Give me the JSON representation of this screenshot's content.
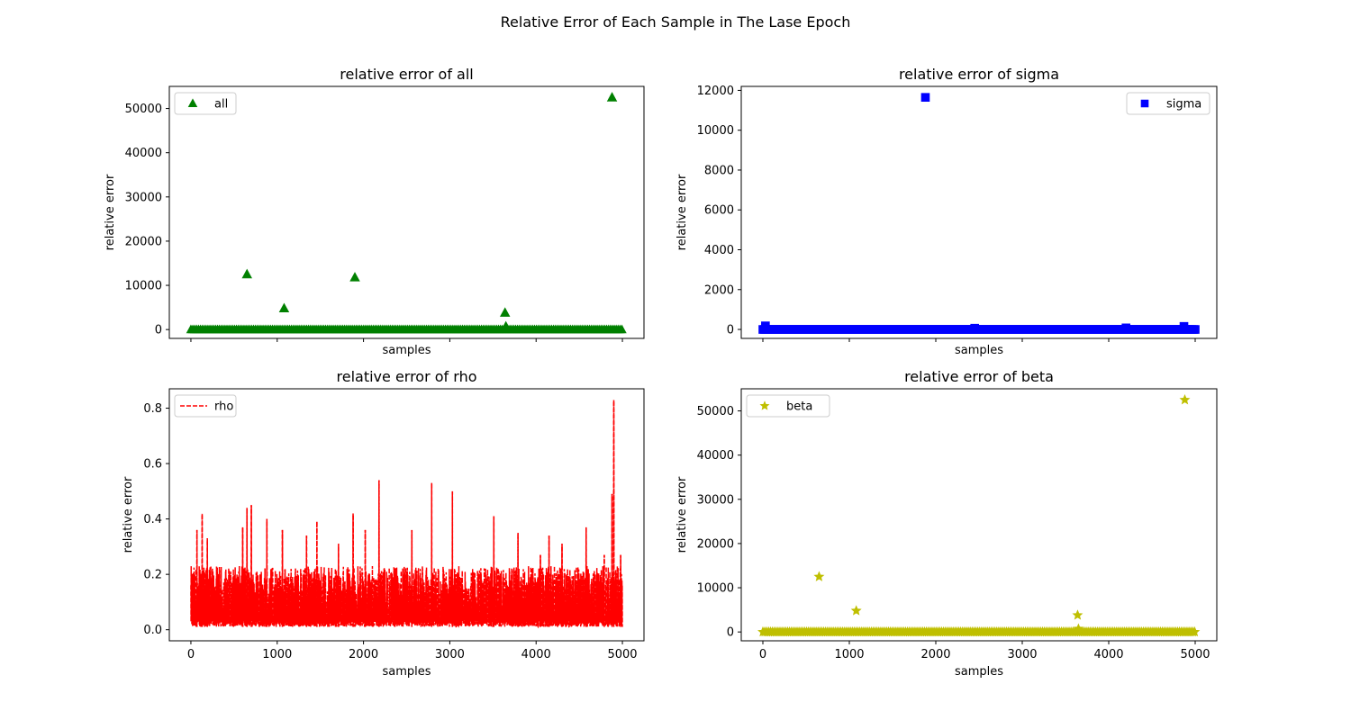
{
  "figure": {
    "suptitle": "Relative Error of Each Sample in The Lase Epoch"
  },
  "chart_data": [
    {
      "id": "all",
      "type": "scatter",
      "title": "relative error of all",
      "xlabel": "samples",
      "ylabel": "relative error",
      "xlim": [
        -250,
        5250
      ],
      "ylim": [
        -2000,
        55000
      ],
      "xticks": [
        0,
        1000,
        2000,
        3000,
        4000,
        5000
      ],
      "show_xticklabels": false,
      "yticks": [
        0,
        10000,
        20000,
        30000,
        40000,
        50000
      ],
      "yticklabels": [
        "0",
        "10000",
        "20000",
        "30000",
        "40000",
        "50000"
      ],
      "legend": {
        "label": "all",
        "position": "top-left"
      },
      "marker": "triangle",
      "color": "#008000",
      "baseline": {
        "x_start": 0,
        "x_end": 5000,
        "y": 0
      },
      "points": [
        {
          "x": 650,
          "y": 12500
        },
        {
          "x": 1080,
          "y": 4800
        },
        {
          "x": 1900,
          "y": 11800
        },
        {
          "x": 3640,
          "y": 3800
        },
        {
          "x": 3650,
          "y": 700
        },
        {
          "x": 4880,
          "y": 52500
        }
      ]
    },
    {
      "id": "sigma",
      "type": "scatter",
      "title": "relative error of sigma",
      "xlabel": "samples",
      "ylabel": "relative error",
      "xlim": [
        -250,
        5250
      ],
      "ylim": [
        -450,
        12200
      ],
      "xticks": [
        0,
        1000,
        2000,
        3000,
        4000,
        5000
      ],
      "show_xticklabels": false,
      "yticks": [
        0,
        2000,
        4000,
        6000,
        8000,
        10000,
        12000
      ],
      "yticklabels": [
        "0",
        "2000",
        "4000",
        "6000",
        "8000",
        "10000",
        "12000"
      ],
      "legend": {
        "label": "sigma",
        "position": "top-right"
      },
      "marker": "square",
      "color": "#0000ff",
      "baseline": {
        "x_start": 0,
        "x_end": 5000,
        "y": 0
      },
      "points": [
        {
          "x": 1880,
          "y": 11650
        },
        {
          "x": 30,
          "y": 180
        },
        {
          "x": 4870,
          "y": 150
        },
        {
          "x": 2450,
          "y": 60
        },
        {
          "x": 4200,
          "y": 80
        }
      ]
    },
    {
      "id": "rho",
      "type": "line",
      "title": "relative error of rho",
      "xlabel": "samples",
      "ylabel": "relative error",
      "xlim": [
        -250,
        5250
      ],
      "ylim": [
        -0.04,
        0.87
      ],
      "xticks": [
        0,
        1000,
        2000,
        3000,
        4000,
        5000
      ],
      "show_xticklabels": true,
      "xticklabels": [
        "0",
        "1000",
        "2000",
        "3000",
        "4000",
        "5000"
      ],
      "yticks": [
        0.0,
        0.2,
        0.4,
        0.6,
        0.8
      ],
      "yticklabels": [
        "0.0",
        "0.2",
        "0.4",
        "0.6",
        "0.8"
      ],
      "legend": {
        "label": "rho",
        "position": "top-left"
      },
      "line_style": "dashed",
      "color": "#ff0000",
      "spikes": [
        {
          "x": 70,
          "y": 0.36
        },
        {
          "x": 130,
          "y": 0.42
        },
        {
          "x": 190,
          "y": 0.33
        },
        {
          "x": 600,
          "y": 0.37
        },
        {
          "x": 650,
          "y": 0.44
        },
        {
          "x": 700,
          "y": 0.45
        },
        {
          "x": 880,
          "y": 0.4
        },
        {
          "x": 1060,
          "y": 0.36
        },
        {
          "x": 1340,
          "y": 0.34
        },
        {
          "x": 1460,
          "y": 0.39
        },
        {
          "x": 1710,
          "y": 0.31
        },
        {
          "x": 1880,
          "y": 0.42
        },
        {
          "x": 2020,
          "y": 0.36
        },
        {
          "x": 2180,
          "y": 0.54
        },
        {
          "x": 2560,
          "y": 0.36
        },
        {
          "x": 2790,
          "y": 0.53
        },
        {
          "x": 3030,
          "y": 0.5
        },
        {
          "x": 3510,
          "y": 0.41
        },
        {
          "x": 3790,
          "y": 0.35
        },
        {
          "x": 4050,
          "y": 0.27
        },
        {
          "x": 4150,
          "y": 0.34
        },
        {
          "x": 4300,
          "y": 0.31
        },
        {
          "x": 4580,
          "y": 0.37
        },
        {
          "x": 4790,
          "y": 0.27
        },
        {
          "x": 4880,
          "y": 0.49
        },
        {
          "x": 4900,
          "y": 0.83
        },
        {
          "x": 4980,
          "y": 0.27
        }
      ],
      "noise": {
        "x_start": 0,
        "x_end": 5000,
        "typical_max": 0.22,
        "floor": 0.01
      }
    },
    {
      "id": "beta",
      "type": "scatter",
      "title": "relative error of beta",
      "xlabel": "samples",
      "ylabel": "relative error",
      "xlim": [
        -250,
        5250
      ],
      "ylim": [
        -2000,
        55000
      ],
      "xticks": [
        0,
        1000,
        2000,
        3000,
        4000,
        5000
      ],
      "show_xticklabels": true,
      "xticklabels": [
        "0",
        "1000",
        "2000",
        "3000",
        "4000",
        "5000"
      ],
      "yticks": [
        0,
        10000,
        20000,
        30000,
        40000,
        50000
      ],
      "yticklabels": [
        "0",
        "10000",
        "20000",
        "30000",
        "40000",
        "50000"
      ],
      "legend": {
        "label": "beta",
        "position": "top-left"
      },
      "marker": "star",
      "color": "#bfbf00",
      "baseline": {
        "x_start": 0,
        "x_end": 5000,
        "y": 0
      },
      "points": [
        {
          "x": 650,
          "y": 12500
        },
        {
          "x": 1080,
          "y": 4800
        },
        {
          "x": 3640,
          "y": 3800
        },
        {
          "x": 3650,
          "y": 700
        },
        {
          "x": 4880,
          "y": 52500
        }
      ]
    }
  ]
}
